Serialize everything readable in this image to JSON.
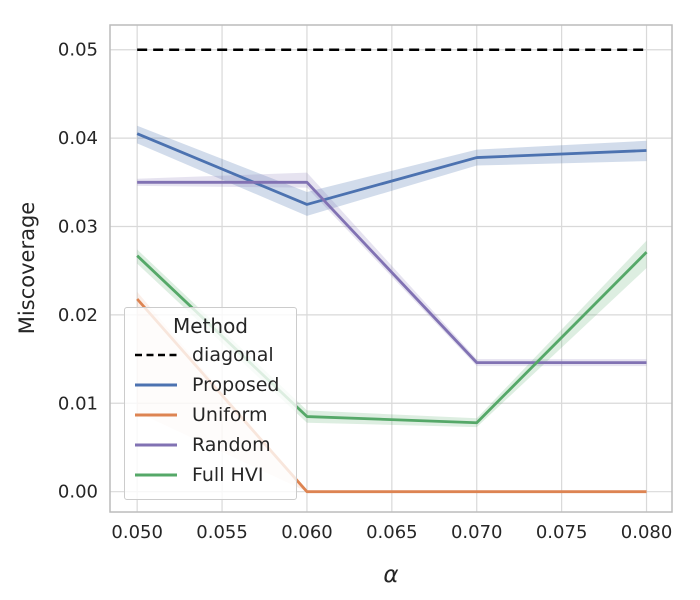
{
  "chart_data": {
    "type": "line",
    "title": "",
    "xlabel": "α",
    "ylabel": "Miscoverage",
    "grid": true,
    "xlim": [
      0.0484,
      0.0815
    ],
    "ylim": [
      -0.0023,
      0.0528
    ],
    "xticks": [
      0.05,
      0.055,
      0.06,
      0.065,
      0.07,
      0.075,
      0.08
    ],
    "xtick_labels": [
      "0.050",
      "0.055",
      "0.060",
      "0.065",
      "0.070",
      "0.075",
      "0.080"
    ],
    "yticks": [
      0.0,
      0.01,
      0.02,
      0.03,
      0.04,
      0.05
    ],
    "ytick_labels": [
      "0.00",
      "0.01",
      "0.02",
      "0.03",
      "0.04",
      "0.05"
    ],
    "legend": {
      "title": "Method",
      "position": "lower-left"
    },
    "series": [
      {
        "name": "diagonal",
        "color": "#000000",
        "dashed": true,
        "x": [
          0.05,
          0.08
        ],
        "y": [
          0.05,
          0.05
        ]
      },
      {
        "name": "Proposed",
        "color": "#4c72b0",
        "dashed": false,
        "x": [
          0.05,
          0.06,
          0.07,
          0.08
        ],
        "y": [
          0.0405,
          0.0325,
          0.0378,
          0.0386
        ],
        "band_low": [
          0.0394,
          0.0312,
          0.0369,
          0.0374
        ],
        "band_high": [
          0.0414,
          0.0339,
          0.0387,
          0.0397
        ],
        "band_alpha": 0.25
      },
      {
        "name": "Uniform",
        "color": "#dd8452",
        "dashed": false,
        "x": [
          0.05,
          0.06,
          0.07,
          0.08
        ],
        "y": [
          0.0218,
          0.0,
          0.0,
          0.0
        ],
        "band_low": [
          0.009,
          0.0,
          0.0,
          0.0
        ],
        "band_high": [
          0.0226,
          0.0,
          0.0,
          0.0
        ],
        "band_alpha": 0.13
      },
      {
        "name": "Random",
        "color": "#8172b3",
        "dashed": false,
        "x": [
          0.05,
          0.06,
          0.07,
          0.08
        ],
        "y": [
          0.035,
          0.035,
          0.0146,
          0.0146
        ],
        "band_low": [
          0.0346,
          0.0344,
          0.0142,
          0.0142
        ],
        "band_high": [
          0.0354,
          0.0361,
          0.015,
          0.015
        ],
        "band_alpha": 0.2
      },
      {
        "name": "Full HVI",
        "color": "#55a868",
        "dashed": false,
        "x": [
          0.05,
          0.06,
          0.07,
          0.08
        ],
        "y": [
          0.0267,
          0.0085,
          0.0078,
          0.0271
        ],
        "band_low": [
          0.0258,
          0.0078,
          0.0073,
          0.0253
        ],
        "band_high": [
          0.0274,
          0.0092,
          0.0083,
          0.0284
        ],
        "band_alpha": 0.2
      }
    ]
  },
  "style_colors": {
    "grid": "#d9d9d9",
    "spine": "#bcbcbc",
    "text": "#262626",
    "plot_background": "#ffffff"
  }
}
